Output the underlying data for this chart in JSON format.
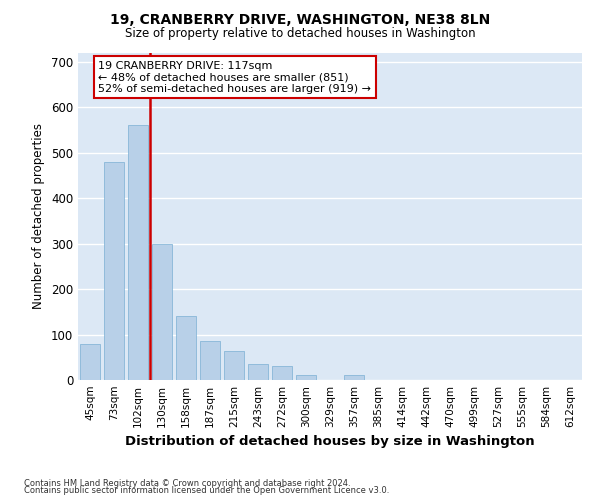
{
  "title1": "19, CRANBERRY DRIVE, WASHINGTON, NE38 8LN",
  "title2": "Size of property relative to detached houses in Washington",
  "xlabel": "Distribution of detached houses by size in Washington",
  "ylabel": "Number of detached properties",
  "categories": [
    "45sqm",
    "73sqm",
    "102sqm",
    "130sqm",
    "158sqm",
    "187sqm",
    "215sqm",
    "243sqm",
    "272sqm",
    "300sqm",
    "329sqm",
    "357sqm",
    "385sqm",
    "414sqm",
    "442sqm",
    "470sqm",
    "499sqm",
    "527sqm",
    "555sqm",
    "584sqm",
    "612sqm"
  ],
  "values": [
    80,
    480,
    560,
    300,
    140,
    85,
    63,
    35,
    30,
    12,
    0,
    12,
    0,
    0,
    0,
    0,
    0,
    0,
    0,
    0,
    0
  ],
  "bar_color": "#b8d0e8",
  "bar_edge_color": "#7aafd4",
  "bg_color": "#dce8f5",
  "grid_color": "#ffffff",
  "red_line_x": 2.5,
  "annotation_line1": "19 CRANBERRY DRIVE: 117sqm",
  "annotation_line2": "← 48% of detached houses are smaller (851)",
  "annotation_line3": "52% of semi-detached houses are larger (919) →",
  "annotation_box_color": "#ffffff",
  "annotation_box_edge": "#cc0000",
  "footer1": "Contains HM Land Registry data © Crown copyright and database right 2024.",
  "footer2": "Contains public sector information licensed under the Open Government Licence v3.0.",
  "ylim": [
    0,
    720
  ],
  "yticks": [
    0,
    100,
    200,
    300,
    400,
    500,
    600,
    700
  ],
  "fig_bg": "#ffffff"
}
